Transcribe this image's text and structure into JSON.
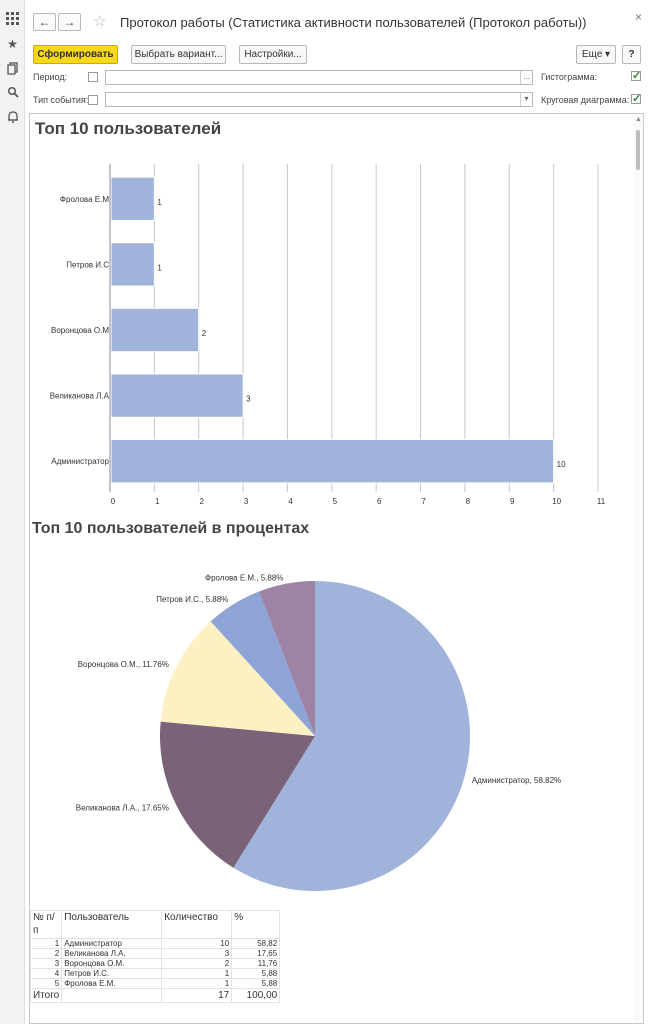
{
  "window": {
    "title": "Протокол работы (Статистика активности пользователей (Протокол работы))",
    "back_icon": "←",
    "forward_icon": "→",
    "close_icon": "×"
  },
  "toolbar": {
    "generate_label": "Сформировать",
    "choose_variant_label": "Выбрать вариант...",
    "settings_label": "Настройки...",
    "more_label": "Еще ▾",
    "help_label": "?"
  },
  "filters": {
    "period_label": "Период:",
    "period_checked": false,
    "period_value": "",
    "period_button": "...",
    "event_type_label": "Тип события:",
    "event_type_checked": false,
    "event_type_value": "",
    "event_type_button": "▾",
    "histogram_label": "Гистограмма:",
    "histogram_checked": true,
    "pie_label": "Круговая диаграмма:",
    "pie_checked": true
  },
  "report": {
    "bar_title": "Топ 10 пользователей",
    "pie_title": "Топ 10 пользователей в процентах",
    "table": {
      "headers": [
        "№ п/п",
        "Пользователь",
        "Количество",
        "%"
      ],
      "rows": [
        {
          "num": "1",
          "user": "Администратор",
          "count": "10",
          "pct": "58,82"
        },
        {
          "num": "2",
          "user": "Великанова Л.А.",
          "count": "3",
          "pct": "17,65"
        },
        {
          "num": "3",
          "user": "Воронцова О.М.",
          "count": "2",
          "pct": "11,76"
        },
        {
          "num": "4",
          "user": "Петров И.С.",
          "count": "1",
          "pct": "5,88"
        },
        {
          "num": "5",
          "user": "Фролова Е.М.",
          "count": "1",
          "pct": "5,88"
        }
      ],
      "total_label": "Итого",
      "total_count": "17",
      "total_pct": "100,00"
    }
  },
  "chart_data": [
    {
      "type": "bar",
      "orientation": "horizontal",
      "title": "Топ 10 пользователей",
      "categories": [
        "Фролова Е.М",
        "Петров И.С",
        "Воронцова О.М",
        "Великанова Л.А",
        "Администратор"
      ],
      "values": [
        1,
        1,
        2,
        3,
        10
      ],
      "xlim": [
        0,
        11
      ],
      "ticks": [
        0,
        1,
        2,
        3,
        4,
        5,
        6,
        7,
        8,
        9,
        10,
        11
      ],
      "grid": true,
      "color": "#a0b3db"
    },
    {
      "type": "pie",
      "title": "Топ 10 пользователей в процентах",
      "slices": [
        {
          "label": "Администратор, 58.82%",
          "value": 58.82,
          "color": "#a0b3db"
        },
        {
          "label": "Великанова Л.А., 17.65%",
          "value": 17.65,
          "color": "#7a6278"
        },
        {
          "label": "Воронцова О.М., 11.76%",
          "value": 11.76,
          "color": "#fdf0c2"
        },
        {
          "label": "Петров И.С., 5.88%",
          "value": 5.88,
          "color": "#8ea4d7"
        },
        {
          "label": "Фролова Е.М., 5.88%",
          "value": 5.88,
          "color": "#9d84a6"
        }
      ]
    }
  ]
}
